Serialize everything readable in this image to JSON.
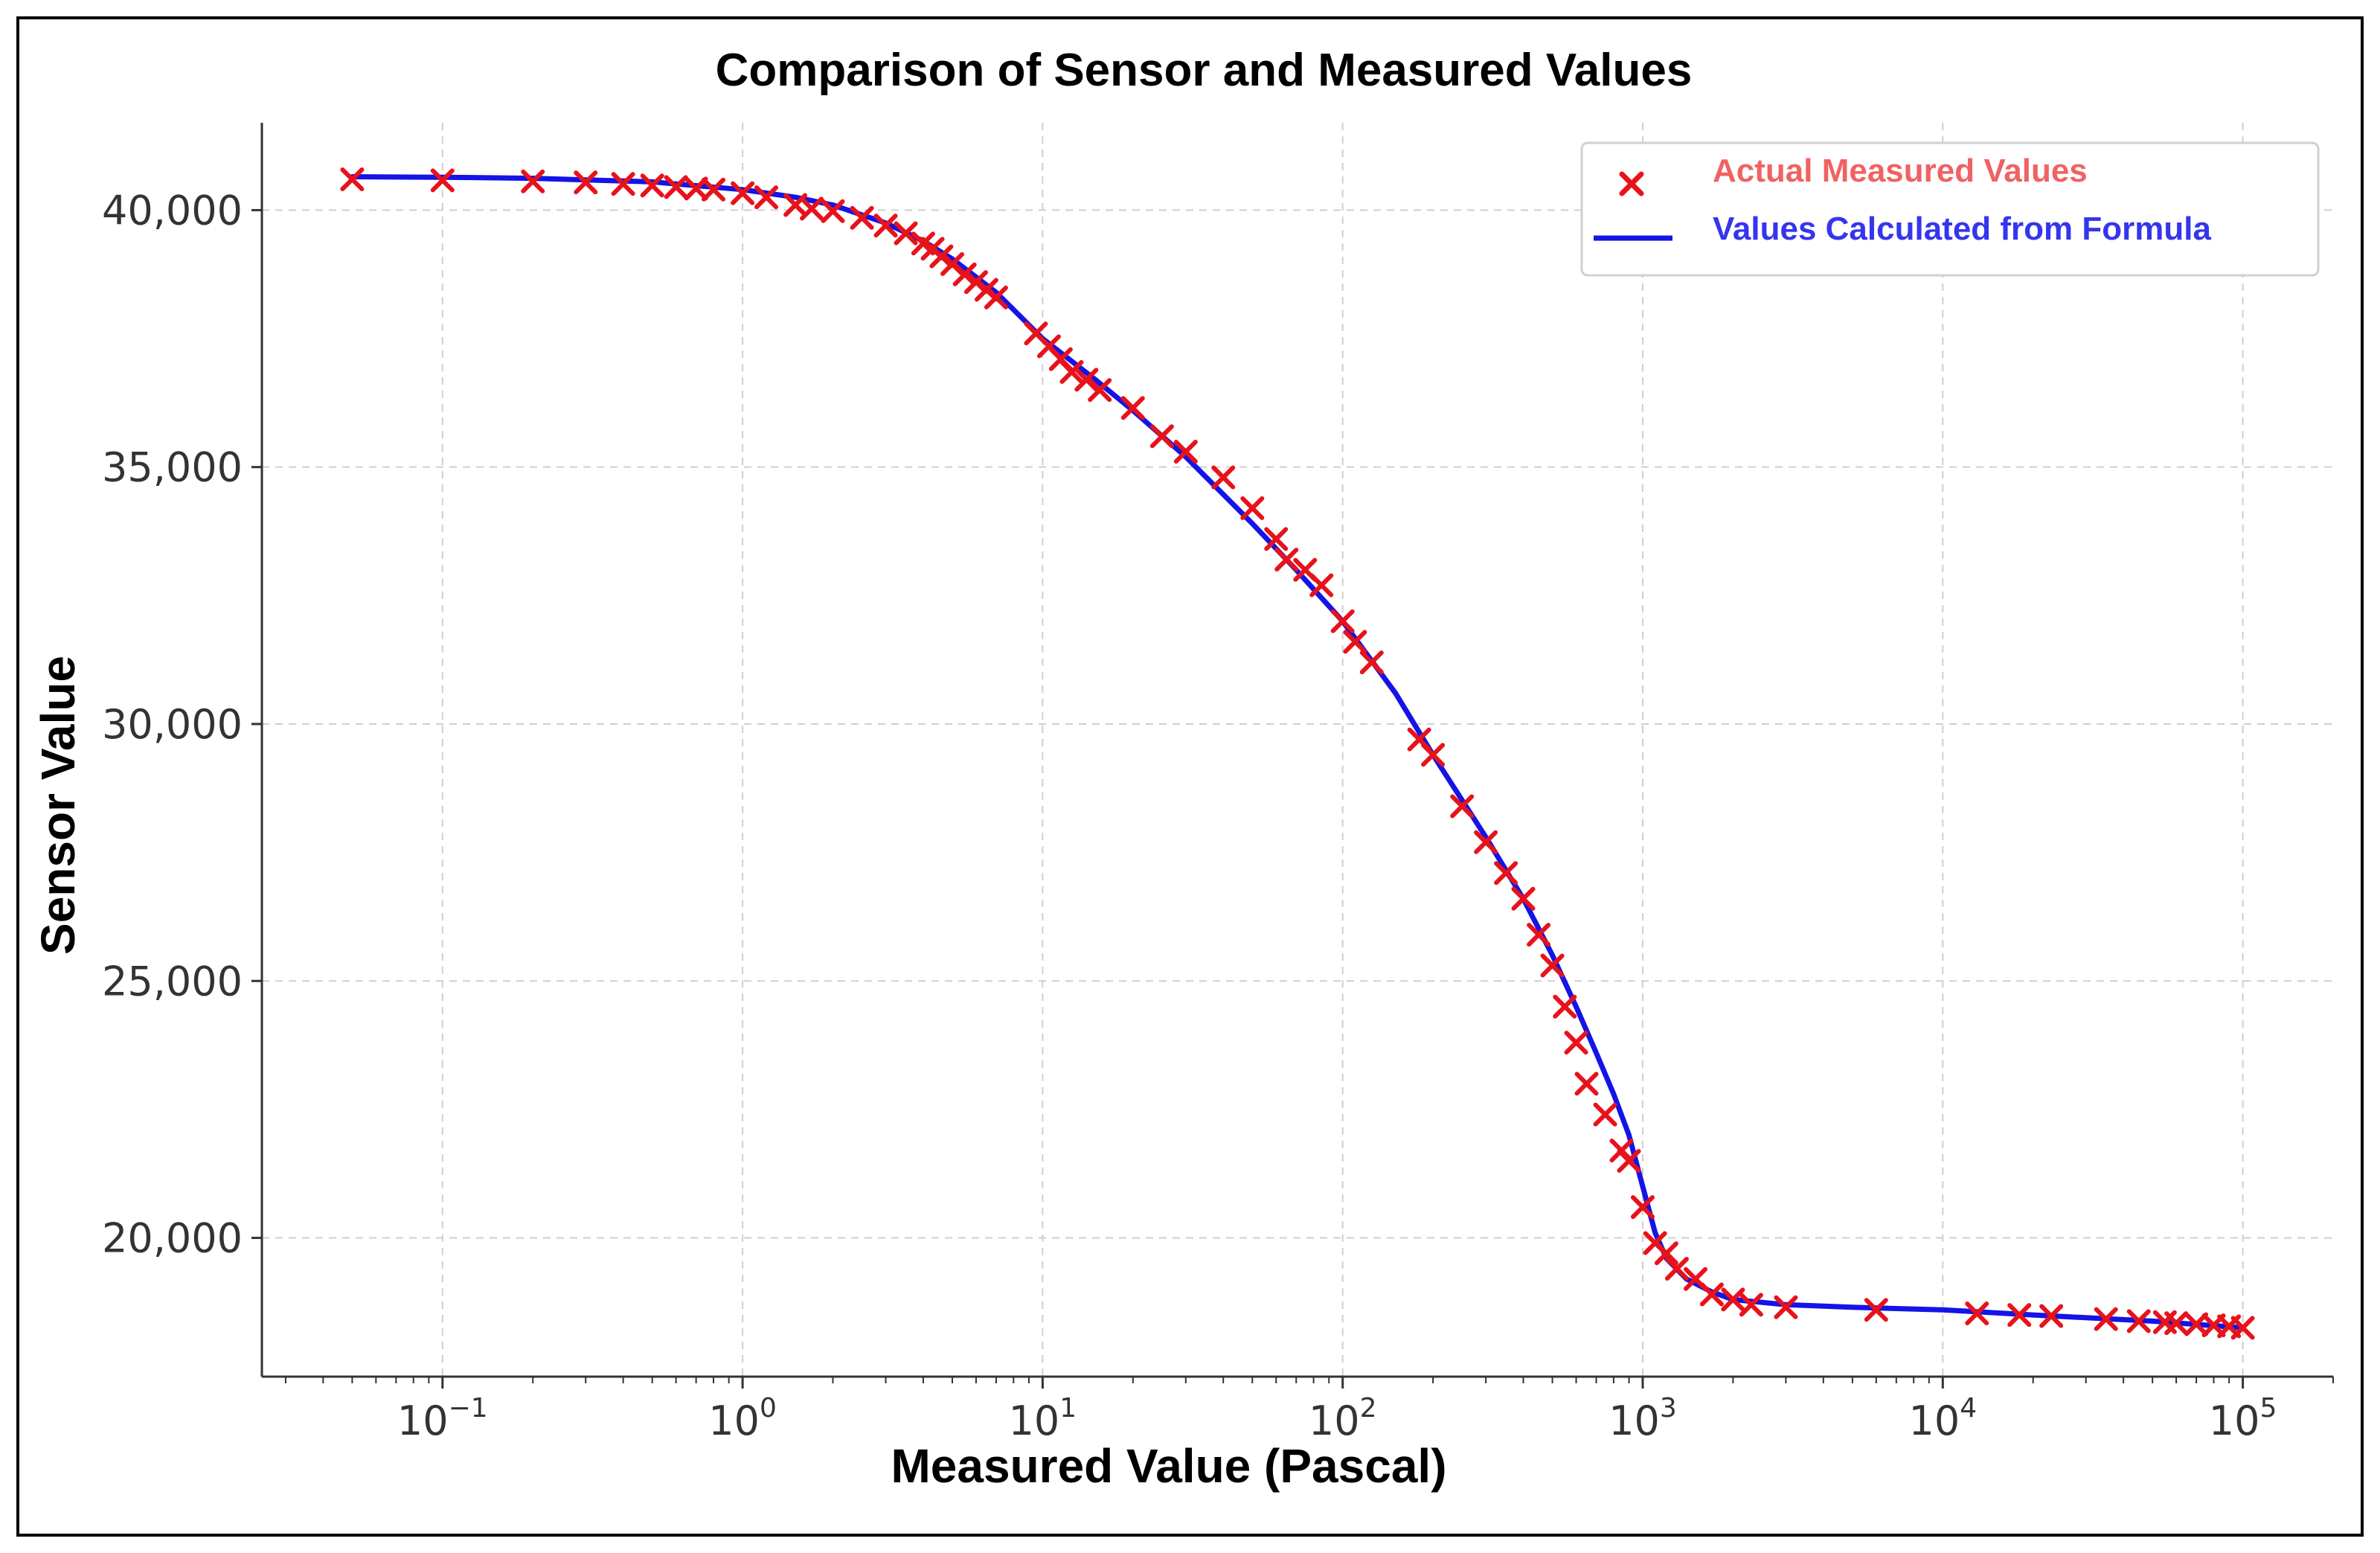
{
  "chart_data": {
    "type": "line",
    "title": "Comparison of Sensor and Measured Values",
    "xlabel": "Measured Value (Pascal)",
    "ylabel": "Sensor Value",
    "xscale": "log",
    "xlim": [
      0.025,
      200000
    ],
    "ylim": [
      17300,
      41700
    ],
    "grid": true,
    "legend_position": "top-right",
    "colors": {
      "markers": "#e8121b",
      "line": "#1414e6",
      "legend_marker_text": "#f06262",
      "legend_line_text": "#3535ee"
    },
    "x_ticks": [
      {
        "value": 0.1,
        "base": "10",
        "exp": "−1"
      },
      {
        "value": 1,
        "base": "10",
        "exp": "0"
      },
      {
        "value": 10,
        "base": "10",
        "exp": "1"
      },
      {
        "value": 100,
        "base": "10",
        "exp": "2"
      },
      {
        "value": 1000,
        "base": "10",
        "exp": "3"
      },
      {
        "value": 10000,
        "base": "10",
        "exp": "4"
      },
      {
        "value": 100000,
        "base": "10",
        "exp": "5"
      }
    ],
    "y_ticks": [
      {
        "value": 20000,
        "label": "20,000"
      },
      {
        "value": 25000,
        "label": "25,000"
      },
      {
        "value": 30000,
        "label": "30,000"
      },
      {
        "value": 35000,
        "label": "35,000"
      },
      {
        "value": 40000,
        "label": "40,000"
      }
    ],
    "series": [
      {
        "name": "Actual Measured Values",
        "kind": "scatter",
        "marker": "x",
        "x": [
          0.05,
          0.1,
          0.2,
          0.3,
          0.4,
          0.5,
          0.6,
          0.7,
          0.8,
          1.0,
          1.2,
          1.5,
          1.7,
          2.0,
          2.5,
          3.0,
          3.5,
          4.0,
          4.3,
          4.6,
          5.0,
          5.5,
          6.0,
          6.5,
          7.0,
          9.5,
          10.5,
          11.5,
          12.5,
          14.0,
          15.5,
          20.0,
          25.0,
          30.0,
          40.0,
          50.0,
          60.0,
          65.0,
          75.0,
          85.0,
          100.0,
          110.0,
          125.0,
          180.0,
          200.0,
          250.0,
          300.0,
          350.0,
          400.0,
          450.0,
          500.0,
          550.0,
          600.0,
          650.0,
          750.0,
          850.0,
          900.0,
          1000.0,
          1100.0,
          1200.0,
          1300.0,
          1500.0,
          1700.0,
          2000.0,
          2300.0,
          3000.0,
          6000.0,
          13000.0,
          18000.0,
          23000.0,
          35000.0,
          45000.0,
          55000.0,
          60000.0,
          70000.0,
          80000.0,
          90000.0,
          100000.0
        ],
        "y": [
          40600,
          40580,
          40560,
          40540,
          40510,
          40480,
          40450,
          40420,
          40400,
          40330,
          40250,
          40100,
          40030,
          39980,
          39850,
          39700,
          39550,
          39350,
          39250,
          39100,
          38950,
          38750,
          38600,
          38450,
          38300,
          37600,
          37350,
          37100,
          36850,
          36700,
          36500,
          36150,
          35600,
          35300,
          34800,
          34200,
          33600,
          33200,
          33000,
          32700,
          32000,
          31600,
          31200,
          29700,
          29400,
          28400,
          27700,
          27100,
          26600,
          25900,
          25300,
          24500,
          23800,
          23000,
          22400,
          21700,
          21500,
          20600,
          19900,
          19700,
          19400,
          19200,
          18900,
          18800,
          18700,
          18650,
          18600,
          18530,
          18500,
          18480,
          18420,
          18380,
          18360,
          18340,
          18320,
          18300,
          18280,
          18250
        ]
      },
      {
        "name": "Values Calculated from Formula",
        "kind": "line",
        "x": [
          0.05,
          0.1,
          0.2,
          0.5,
          1.0,
          1.5,
          2.0,
          3.0,
          4.0,
          5.0,
          7.0,
          10.0,
          15.0,
          20.0,
          30.0,
          50.0,
          70.0,
          100.0,
          150.0,
          200.0,
          300.0,
          400.0,
          500.0,
          600.0,
          700.0,
          800.0,
          900.0,
          1000.0,
          1100.0,
          1200.0,
          1400.0,
          1700.0,
          2000.0,
          3000.0,
          5000.0,
          10000.0,
          20000.0,
          50000.0,
          100000.0
        ],
        "y": [
          40650,
          40640,
          40620,
          40550,
          40400,
          40250,
          40100,
          39750,
          39400,
          39050,
          38400,
          37500,
          36700,
          36100,
          35200,
          33900,
          33000,
          32000,
          30600,
          29400,
          27800,
          26600,
          25500,
          24500,
          23600,
          22800,
          22000,
          21000,
          20100,
          19600,
          19200,
          18950,
          18800,
          18700,
          18650,
          18600,
          18500,
          18380,
          18250
        ]
      }
    ]
  }
}
